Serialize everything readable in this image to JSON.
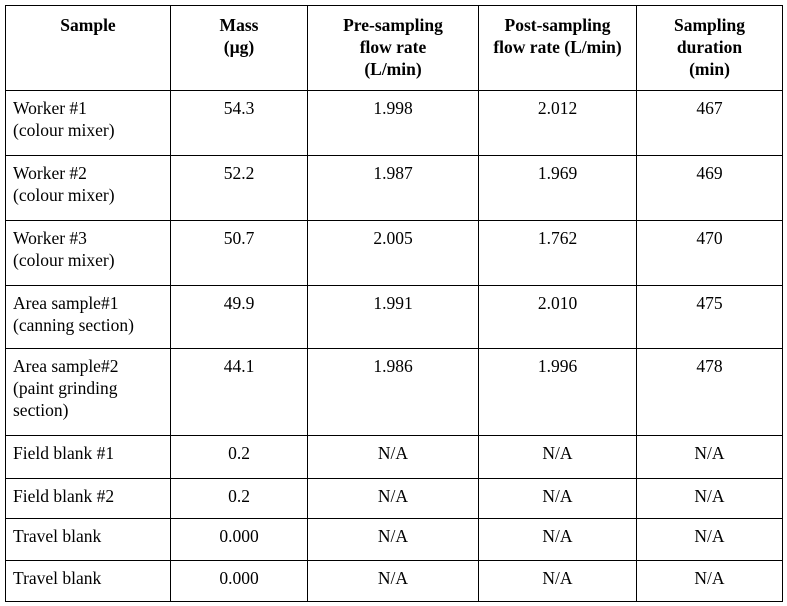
{
  "table": {
    "header": [
      [
        "Sample"
      ],
      [
        "Mass",
        "(µg)"
      ],
      [
        "Pre-sampling",
        "flow rate",
        "(L/min)"
      ],
      [
        "Post-sampling",
        "flow rate (L/min)"
      ],
      [
        "Sampling",
        "duration",
        "(min)"
      ]
    ],
    "rows": [
      [
        [
          "Worker #1",
          "(colour mixer)"
        ],
        "54.3",
        "1.998",
        "2.012",
        "467"
      ],
      [
        [
          "Worker #2",
          "(colour mixer)"
        ],
        "52.2",
        "1.987",
        "1.969",
        "469"
      ],
      [
        [
          "Worker #3",
          "(colour mixer)"
        ],
        "50.7",
        "2.005",
        "1.762",
        "470"
      ],
      [
        [
          "Area sample#1",
          "(canning section)"
        ],
        "49.9",
        "1.991",
        "2.010",
        "475"
      ],
      [
        [
          "Area sample#2",
          "(paint grinding",
          "section)"
        ],
        "44.1",
        "1.986",
        "1.996",
        "478"
      ],
      [
        [
          "Field blank #1"
        ],
        "0.2",
        "N/A",
        "N/A",
        "N/A"
      ],
      [
        [
          "Field blank #2"
        ],
        "0.2",
        "N/A",
        "N/A",
        "N/A"
      ],
      [
        [
          "Travel blank"
        ],
        "0.000",
        "N/A",
        "N/A",
        "N/A"
      ],
      [
        [
          "Travel blank"
        ],
        "0.000",
        "N/A",
        "N/A",
        "N/A"
      ]
    ]
  }
}
